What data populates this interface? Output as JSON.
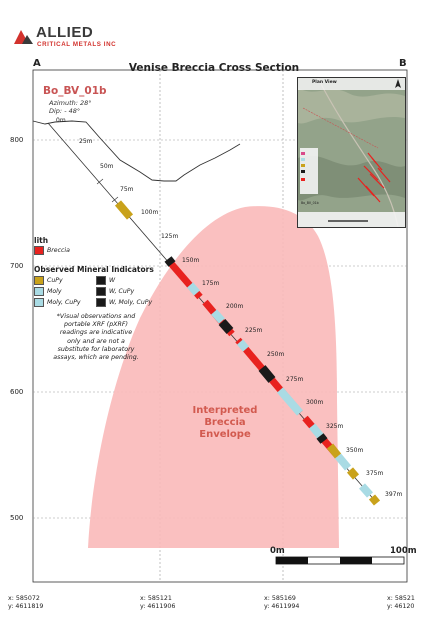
{
  "logo": {
    "name": "ALLIED",
    "subtitle": "CRITICAL METALS INC"
  },
  "title": "Venise Breccia Cross Section",
  "corners": {
    "left": "A",
    "right": "B"
  },
  "hole": {
    "id": "Bo_BV_01b",
    "azimuth": "Azimuth: 28°",
    "dip": "Dip: - 48°"
  },
  "elevations": [
    "800",
    "700",
    "600",
    "500"
  ],
  "depth_labels": [
    "0m",
    "25m",
    "50m",
    "75m",
    "100m",
    "125m",
    "150m",
    "175m",
    "200m",
    "225m",
    "250m",
    "275m",
    "300m",
    "325m",
    "350m",
    "375m",
    "397m"
  ],
  "legend": {
    "lith_title": "lith",
    "lith_items": [
      {
        "label": "Breccia",
        "color": "#e8221f"
      }
    ],
    "mineral_title": "Observed Mineral Indicators",
    "mineral_items": [
      {
        "label": "CuPy",
        "color": "#c9a21b"
      },
      {
        "label": "W",
        "color": "#1a1a1a"
      },
      {
        "label": "Moly",
        "color": "#a9dbe4"
      },
      {
        "label": "W, CuPy",
        "color": "#1a1a1a"
      },
      {
        "label": "Moly, CuPy",
        "color": "#a9dbe4"
      },
      {
        "label": "W, Moly, CuPy",
        "color": "#1a1a1a"
      }
    ]
  },
  "note": [
    "*Visual observations and",
    "portable XRF (pXRF)",
    "readings are indicative",
    "only and are not a",
    "substitute for laboratory",
    "assays, which are pending."
  ],
  "envelope_label": [
    "Interpreted",
    "Breccia",
    "Envelope"
  ],
  "scale": {
    "start": "0m",
    "end": "100m"
  },
  "coords": [
    {
      "x": "x: 585072",
      "y": "y: 4611819"
    },
    {
      "x": "x: 585121",
      "y": "y: 4611906"
    },
    {
      "x": "x: 585169",
      "y": "y: 4611994"
    },
    {
      "x": "x: 58521",
      "y": "y: 46120"
    }
  ],
  "inset": {
    "title": "Plan View",
    "legend_label": "Bo_BV_01b"
  },
  "colors": {
    "breccia": "#e8221f",
    "envelope": "#f9b9b9",
    "cupy": "#c9a21b",
    "moly": "#a9dbe4",
    "w": "#1a1a1a",
    "hole_id": "#c85454",
    "logo_red": "#d2322d"
  }
}
